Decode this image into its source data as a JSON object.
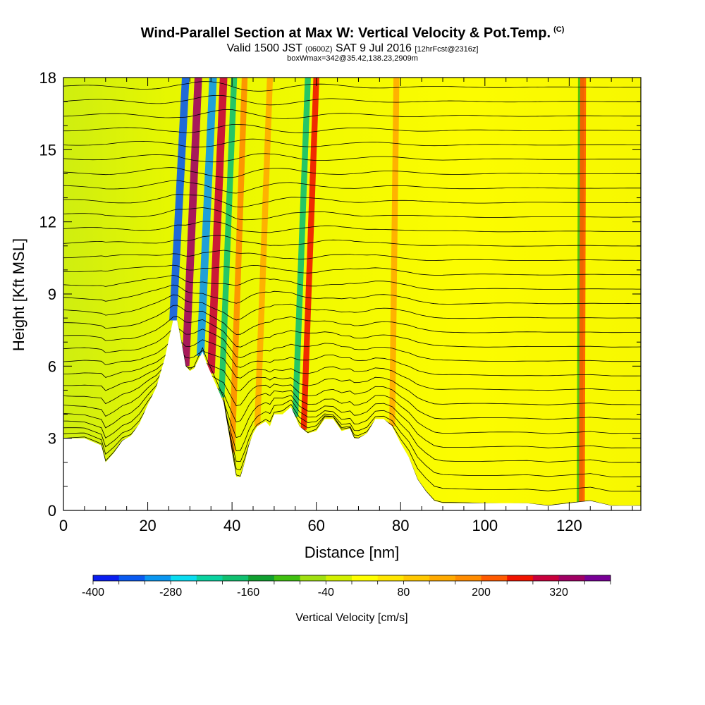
{
  "header": {
    "title": "Wind-Parallel Section at Max W: Vertical Velocity & Pot.Temp.",
    "copyright_mark": "(C)",
    "subtitle_main1": "Valid 1500 JST ",
    "subtitle_small1": "(0600Z)",
    "subtitle_main2": " SAT 9 Jul 2016 ",
    "subtitle_small2": "[12hrFcst@2316z]",
    "box_info": "boxWmax=342@35.42,138.23,2909m"
  },
  "chart_data": {
    "type": "heatmap",
    "xlabel": "Distance [nm]",
    "ylabel": "Height [Kft MSL]",
    "xlim": [
      0,
      137
    ],
    "ylim": [
      0,
      18
    ],
    "x_ticks": [
      0,
      20,
      40,
      60,
      80,
      100,
      120
    ],
    "y_ticks": [
      0,
      3,
      6,
      9,
      12,
      15,
      18
    ],
    "colorbar": {
      "label": "Vertical Velocity [cm/s]",
      "tick_labels": [
        -400,
        -280,
        -160,
        -40,
        80,
        200,
        320
      ],
      "range": [
        -400,
        400
      ],
      "colors": [
        "#0a1ef0",
        "#0a5af0",
        "#0a96f0",
        "#0adcf0",
        "#0ad2a0",
        "#10c070",
        "#10a030",
        "#40c010",
        "#a0e010",
        "#d2f000",
        "#ffff00",
        "#ffe600",
        "#ffc800",
        "#ffaa00",
        "#ff8c00",
        "#ff5a00",
        "#f01400",
        "#c8003c",
        "#a00064",
        "#780096"
      ]
    },
    "velocity_bands": [
      {
        "x": 26,
        "w": -360
      },
      {
        "x": 29,
        "w": 342
      },
      {
        "x": 32.5,
        "w": -300
      },
      {
        "x": 35,
        "w": 300
      },
      {
        "x": 37.5,
        "w": -200
      },
      {
        "x": 40,
        "w": 160
      },
      {
        "x": 46,
        "w": 120
      },
      {
        "x": 55,
        "w": -200
      },
      {
        "x": 57,
        "w": 240
      },
      {
        "x": 78,
        "w": 130
      },
      {
        "x": 122.5,
        "w": -120
      },
      {
        "x": 123,
        "w": 220
      }
    ],
    "terrain_kft": [
      [
        0,
        3.0
      ],
      [
        5,
        3.0
      ],
      [
        9,
        2.7
      ],
      [
        10,
        2.0
      ],
      [
        12,
        2.4
      ],
      [
        14,
        2.9
      ],
      [
        16,
        3.1
      ],
      [
        18,
        3.6
      ],
      [
        20,
        4.4
      ],
      [
        22,
        5.1
      ],
      [
        24,
        6.3
      ],
      [
        26,
        7.9
      ],
      [
        27,
        7.9
      ],
      [
        28,
        7.0
      ],
      [
        29,
        6.0
      ],
      [
        30,
        5.8
      ],
      [
        31,
        5.9
      ],
      [
        33,
        6.6
      ],
      [
        34,
        6.1
      ],
      [
        36,
        5.3
      ],
      [
        38,
        4.5
      ],
      [
        40,
        2.4
      ],
      [
        41,
        1.4
      ],
      [
        42,
        1.4
      ],
      [
        43,
        2.0
      ],
      [
        44,
        2.7
      ],
      [
        45,
        3.2
      ],
      [
        46,
        3.5
      ],
      [
        48,
        3.7
      ],
      [
        49,
        3.5
      ],
      [
        50,
        4.0
      ],
      [
        52,
        4.0
      ],
      [
        54,
        4.3
      ],
      [
        56,
        3.5
      ],
      [
        58,
        3.2
      ],
      [
        60,
        3.3
      ],
      [
        62,
        3.8
      ],
      [
        64,
        3.8
      ],
      [
        66,
        3.3
      ],
      [
        68,
        3.4
      ],
      [
        69,
        3.0
      ],
      [
        70,
        3.0
      ],
      [
        72,
        3.2
      ],
      [
        74,
        3.8
      ],
      [
        76,
        3.8
      ],
      [
        78,
        3.5
      ],
      [
        80,
        2.8
      ],
      [
        82,
        2.2
      ],
      [
        84,
        1.3
      ],
      [
        86,
        0.8
      ],
      [
        88,
        0.4
      ],
      [
        90,
        0.3
      ],
      [
        110,
        0.3
      ],
      [
        115,
        0.2
      ],
      [
        120,
        0.3
      ],
      [
        125,
        0.4
      ],
      [
        130,
        0.2
      ],
      [
        137,
        0.2
      ]
    ],
    "theta_contours_K": [
      300,
      302,
      304,
      306,
      308,
      310,
      312,
      314,
      316,
      318,
      320,
      322,
      324,
      326,
      328,
      330,
      332,
      334,
      336,
      338,
      340,
      342,
      344,
      346,
      348,
      350,
      352,
      354,
      356,
      358,
      360
    ],
    "grid": false
  }
}
